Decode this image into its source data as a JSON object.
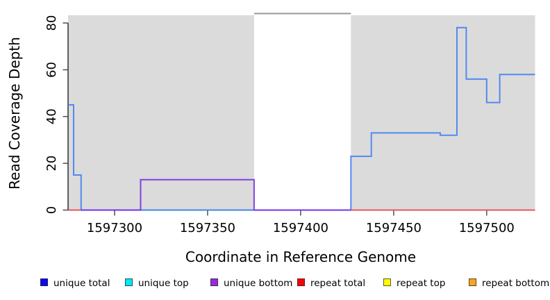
{
  "figure": {
    "xlabel": "Coordinate in Reference Genome",
    "ylabel": "Read Coverage Depth"
  },
  "legend": {
    "items": [
      {
        "label": "unique total",
        "color": "#0a0af0"
      },
      {
        "label": "unique top",
        "color": "#00e8f0"
      },
      {
        "label": "unique bottom",
        "color": "#9b2bd6"
      },
      {
        "label": "repeat total",
        "color": "#f50505"
      },
      {
        "label": "repeat top",
        "color": "#fcfc02"
      },
      {
        "label": "repeat bottom",
        "color": "#f5a623"
      }
    ]
  },
  "chart_data": {
    "type": "line",
    "title": "",
    "xlabel": "Coordinate in Reference Genome",
    "ylabel": "Read Coverage Depth",
    "xlim": [
      1597275,
      1597526
    ],
    "ylim": [
      0,
      83.3
    ],
    "x_ticks": [
      1597300,
      1597350,
      1597400,
      1597450,
      1597500
    ],
    "y_ticks": [
      0,
      20,
      40,
      60,
      80
    ],
    "grid": false,
    "legend_position": "bottom",
    "plot_bg_color": "#dbdbdb",
    "unique_regions_shaded_x": [
      [
        1597275,
        1597375
      ],
      [
        1597427,
        1597526
      ]
    ],
    "repeat_region_gap": {
      "x_range": [
        1597375,
        1597427
      ],
      "top_line_value": 83.3,
      "top_line_color": "#989898"
    },
    "series": [
      {
        "name": "repeat total",
        "color": "#e8404e",
        "segments": [
          [
            [
              1597275,
              0
            ],
            [
              1597282,
              0
            ]
          ],
          [
            [
              1597427,
              0
            ],
            [
              1597526,
              0
            ]
          ]
        ]
      },
      {
        "name": "unique top (green trace)",
        "color": "#5cb85c",
        "segments": [
          [
            [
              1597314,
              0
            ],
            [
              1597375,
              0
            ]
          ]
        ]
      },
      {
        "name": "unique total (blue trace)",
        "color": "#3d7df5",
        "segments": [
          [
            [
              1597275,
              45
            ],
            [
              1597278,
              45
            ],
            [
              1597278,
              15
            ],
            [
              1597282,
              15
            ],
            [
              1597282,
              0
            ],
            [
              1597427,
              0
            ],
            [
              1597427,
              23
            ],
            [
              1597438,
              23
            ],
            [
              1597438,
              33
            ],
            [
              1597475,
              33
            ],
            [
              1597475,
              32
            ],
            [
              1597484,
              32
            ],
            [
              1597484,
              78
            ],
            [
              1597489,
              78
            ],
            [
              1597489,
              56
            ],
            [
              1597500,
              56
            ],
            [
              1597500,
              46
            ],
            [
              1597507,
              46
            ],
            [
              1597507,
              58
            ],
            [
              1597526,
              58
            ]
          ]
        ]
      },
      {
        "name": "unique bottom (purple trace)",
        "color": "#7229e6",
        "segments": [
          [
            [
              1597282,
              0
            ],
            [
              1597314,
              0
            ],
            [
              1597314,
              13
            ],
            [
              1597375,
              13
            ],
            [
              1597375,
              0
            ],
            [
              1597427,
              0
            ]
          ]
        ]
      }
    ]
  }
}
